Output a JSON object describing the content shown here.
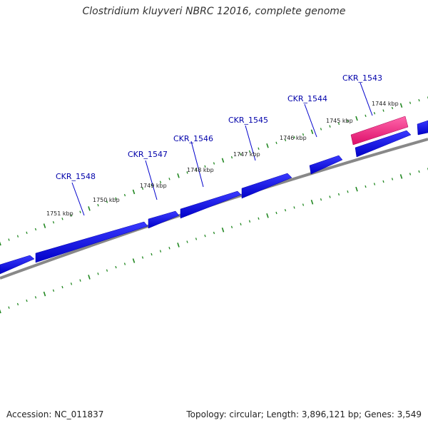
{
  "title": "Clostridium kluyveri NBRC 12016, complete genome",
  "footer": {
    "accession": "Accession: NC_011837",
    "summary": "Topology: circular; Length: 3,896,121 bp; Genes: 3,549"
  },
  "colors": {
    "backbone": "#808080",
    "gene": "#0000ee",
    "highlight_gene": "#ee1177",
    "tick": "#228822",
    "label": "#0000aa",
    "kbp_label": "#222222"
  },
  "kbp_ticks": [
    {
      "label": "1751 kbp"
    },
    {
      "label": "1750 kbp"
    },
    {
      "label": "1749 kbp"
    },
    {
      "label": "1748 kbp"
    },
    {
      "label": "1747 kbp"
    },
    {
      "label": "1746 kbp"
    },
    {
      "label": "1745 kbp"
    },
    {
      "label": "1744 kbp"
    }
  ],
  "gene_labels": [
    {
      "name": "CKR_1548"
    },
    {
      "name": "CKR_1547"
    },
    {
      "name": "CKR_1546"
    },
    {
      "name": "CKR_1545"
    },
    {
      "name": "CKR_1544"
    },
    {
      "name": "CKR_1543"
    }
  ]
}
